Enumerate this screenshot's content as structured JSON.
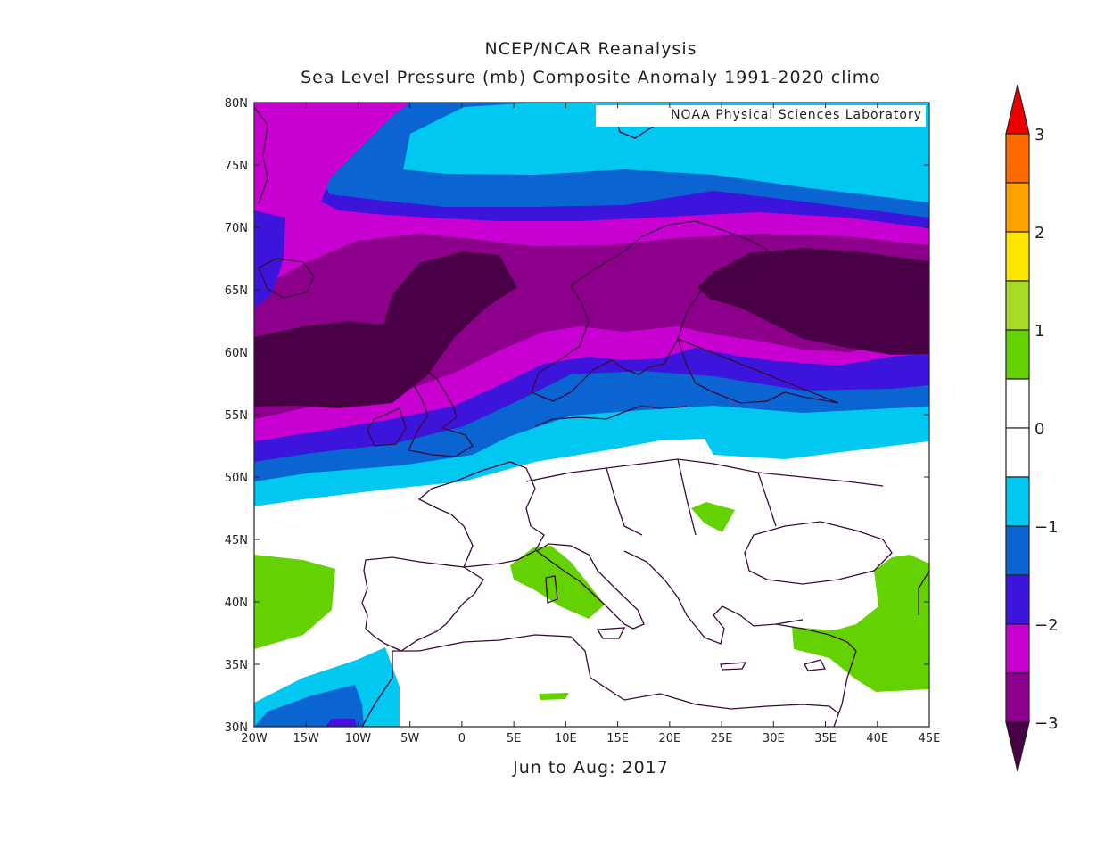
{
  "title": {
    "line1": "NCEP/NCAR Reanalysis",
    "line2": "Sea Level Pressure (mb) Composite Anomaly 1991-2020 climo"
  },
  "credit": "NOAA Physical Sciences Laboratory",
  "period_label": "Jun to Aug: 2017",
  "map": {
    "lon_ticks": [
      "20W",
      "15W",
      "10W",
      "5W",
      "0",
      "5E",
      "10E",
      "15E",
      "20E",
      "25E",
      "30E",
      "35E",
      "40E",
      "45E"
    ],
    "lat_ticks": [
      "80N",
      "75N",
      "70N",
      "65N",
      "60N",
      "55N",
      "50N",
      "45N",
      "40N",
      "35N",
      "30N"
    ],
    "lon_range": [
      -20,
      45
    ],
    "lat_range": [
      30,
      80
    ]
  },
  "colorbar": {
    "labels": [
      "3",
      "2",
      "1",
      "0",
      "-1",
      "-2",
      "-3"
    ],
    "levels": [
      {
        "range": "> 3",
        "color": "#ee0000"
      },
      {
        "range": "2.5 to 3",
        "color": "#ff6a00"
      },
      {
        "range": "2 to 2.5",
        "color": "#ffa200"
      },
      {
        "range": "1.5 to 2",
        "color": "#ffe600"
      },
      {
        "range": "1 to 1.5",
        "color": "#a8dc28"
      },
      {
        "range": "0.5 to 1",
        "color": "#64d200"
      },
      {
        "range": "0 to 0.5",
        "color": "#ffffff"
      },
      {
        "range": "-0.5 to 0",
        "color": "#ffffff"
      },
      {
        "range": "-1 to -0.5",
        "color": "#00c8f0"
      },
      {
        "range": "-1.5 to -1",
        "color": "#0a64d2"
      },
      {
        "range": "-2 to -1.5",
        "color": "#3c14dc"
      },
      {
        "range": "-2.5 to -2",
        "color": "#c800d2"
      },
      {
        "range": "-3 to -2.5",
        "color": "#8c008c"
      },
      {
        "range": "< -3",
        "color": "#4a0046"
      }
    ]
  }
}
